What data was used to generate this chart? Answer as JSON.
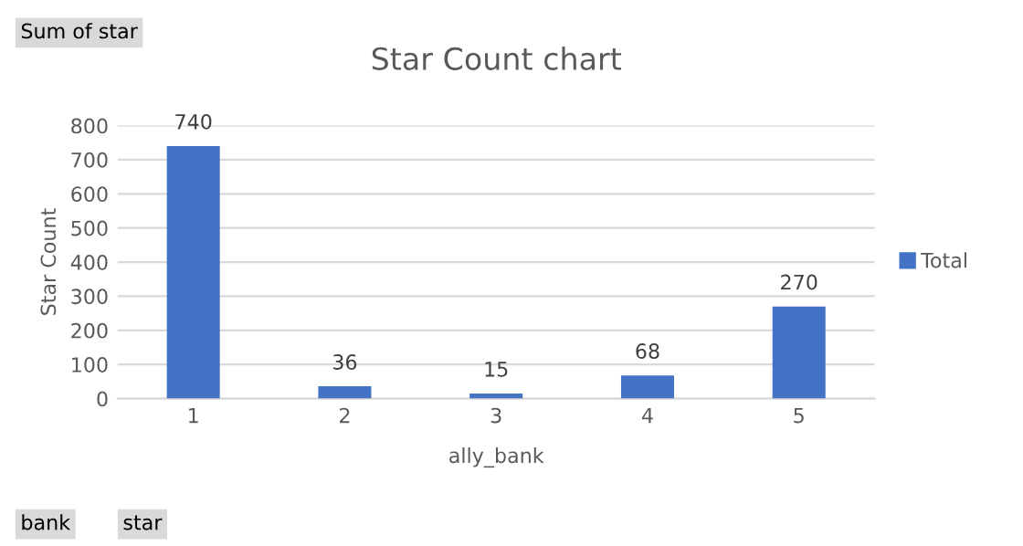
{
  "chart_data": {
    "type": "bar",
    "title": "Star Count chart",
    "xlabel": "ally_bank",
    "ylabel": "Star Count",
    "categories": [
      "1",
      "2",
      "3",
      "4",
      "5"
    ],
    "series": [
      {
        "name": "Total",
        "color": "#4472c4",
        "values": [
          740,
          36,
          15,
          68,
          270
        ]
      }
    ],
    "ylim": [
      0,
      800
    ],
    "yticks": [
      0,
      100,
      200,
      300,
      400,
      500,
      600,
      700,
      800
    ],
    "grid": "y",
    "legend": "right",
    "data_labels": true,
    "annotations": [
      "Sum of star",
      "bank",
      "star"
    ]
  }
}
